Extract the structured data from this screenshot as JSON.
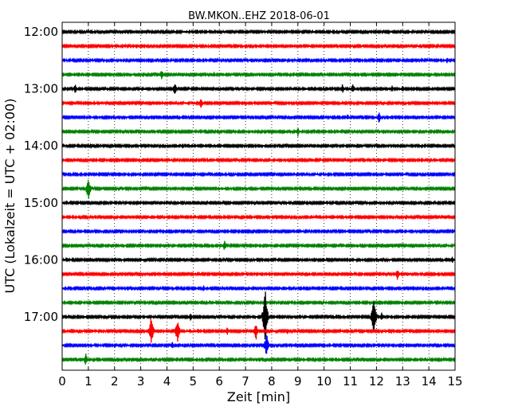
{
  "chart_data": {
    "type": "line",
    "title": "BW.MKON..EHZ 2018-06-01",
    "xlabel": "Zeit  [min]",
    "ylabel": "UTC (Lokalzeit = UTC + 02:00)",
    "xlim": [
      0,
      15
    ],
    "x_ticks": [
      "0",
      "1",
      "2",
      "3",
      "4",
      "5",
      "6",
      "7",
      "8",
      "9",
      "10",
      "11",
      "12",
      "13",
      "14",
      "15"
    ],
    "y_ticks": [
      "12:00",
      "13:00",
      "14:00",
      "15:00",
      "16:00",
      "17:00"
    ],
    "grid": true,
    "grid_style": "dotted-vertical",
    "series": [
      {
        "row_time": "12:00",
        "color": "#000000",
        "events": [
          [
            2.3,
            0.4
          ]
        ]
      },
      {
        "row_time": "12:15",
        "color": "#ff0000",
        "events": [
          [
            5.5,
            0.3
          ]
        ]
      },
      {
        "row_time": "12:30",
        "color": "#0000ff",
        "events": [
          [
            14.7,
            0.5
          ],
          [
            8.3,
            0.3
          ]
        ]
      },
      {
        "row_time": "12:45",
        "color": "#008000",
        "events": [
          [
            3.8,
            0.8
          ],
          [
            5.8,
            0.4
          ],
          [
            9.3,
            0.4
          ],
          [
            12.8,
            0.4
          ]
        ]
      },
      {
        "row_time": "13:00",
        "color": "#000000",
        "events": [
          [
            0.5,
            0.7
          ],
          [
            4.3,
            1.0
          ],
          [
            10.7,
            0.7
          ],
          [
            11.1,
            0.8
          ],
          [
            12.6,
            0.5
          ],
          [
            13.0,
            0.5
          ]
        ]
      },
      {
        "row_time": "13:15",
        "color": "#ff0000",
        "events": [
          [
            5.3,
            0.8
          ],
          [
            1.5,
            0.3
          ],
          [
            11.4,
            0.3
          ]
        ]
      },
      {
        "row_time": "13:30",
        "color": "#0000ff",
        "events": [
          [
            10.9,
            0.5
          ],
          [
            12.1,
            0.9
          ],
          [
            6.1,
            0.3
          ]
        ]
      },
      {
        "row_time": "13:45",
        "color": "#008000",
        "events": [
          [
            9.0,
            0.7
          ],
          [
            14.8,
            0.3
          ]
        ]
      },
      {
        "row_time": "14:00",
        "color": "#000000",
        "events": [
          [
            1.1,
            0.4
          ],
          [
            3.3,
            0.4
          ],
          [
            4.6,
            0.4
          ]
        ]
      },
      {
        "row_time": "14:15",
        "color": "#ff0000",
        "events": [
          [
            7.9,
            0.4
          ],
          [
            9.6,
            0.3
          ],
          [
            5.6,
            0.2
          ]
        ]
      },
      {
        "row_time": "14:30",
        "color": "#0000ff",
        "events": []
      },
      {
        "row_time": "14:45",
        "color": "#008000",
        "events": [
          [
            1.0,
            2.0
          ],
          [
            3.2,
            0.4
          ],
          [
            9.1,
            0.5
          ],
          [
            6.1,
            0.3
          ]
        ]
      },
      {
        "row_time": "15:00",
        "color": "#000000",
        "events": [
          [
            13.2,
            0.3
          ],
          [
            6.0,
            0.2
          ]
        ]
      },
      {
        "row_time": "15:15",
        "color": "#ff0000",
        "events": []
      },
      {
        "row_time": "15:30",
        "color": "#0000ff",
        "events": [
          [
            14.9,
            0.4
          ]
        ]
      },
      {
        "row_time": "15:45",
        "color": "#008000",
        "events": [
          [
            6.2,
            0.8
          ]
        ]
      },
      {
        "row_time": "16:00",
        "color": "#000000",
        "events": [
          [
            14.9,
            0.5
          ],
          [
            4.6,
            0.3
          ]
        ]
      },
      {
        "row_time": "16:15",
        "color": "#ff0000",
        "events": [
          [
            12.8,
            1.0
          ],
          [
            7.8,
            0.4
          ]
        ]
      },
      {
        "row_time": "16:30",
        "color": "#0000ff",
        "events": [
          [
            5.4,
            0.5
          ],
          [
            11.1,
            0.4
          ],
          [
            7.8,
            0.3
          ]
        ]
      },
      {
        "row_time": "16:45",
        "color": "#008000",
        "events": [
          [
            7.8,
            0.5
          ]
        ]
      },
      {
        "row_time": "17:00",
        "color": "#000000",
        "events": [
          [
            2.5,
            0.5
          ],
          [
            4.9,
            0.6
          ],
          [
            7.75,
            5.0
          ],
          [
            11.9,
            3.5
          ],
          [
            12.2,
            0.7
          ]
        ]
      },
      {
        "row_time": "17:15",
        "color": "#ff0000",
        "events": [
          [
            3.4,
            2.5
          ],
          [
            4.4,
            2.0
          ],
          [
            6.3,
            0.7
          ],
          [
            7.4,
            1.4
          ],
          [
            8.6,
            0.5
          ],
          [
            1.5,
            0.3
          ]
        ]
      },
      {
        "row_time": "17:30",
        "color": "#0000ff",
        "events": [
          [
            4.2,
            0.6
          ],
          [
            7.8,
            2.0
          ],
          [
            4.6,
            0.3
          ]
        ]
      },
      {
        "row_time": "17:45",
        "color": "#008000",
        "events": [
          [
            0.9,
            1.0
          ],
          [
            4.7,
            0.4
          ]
        ]
      }
    ]
  }
}
